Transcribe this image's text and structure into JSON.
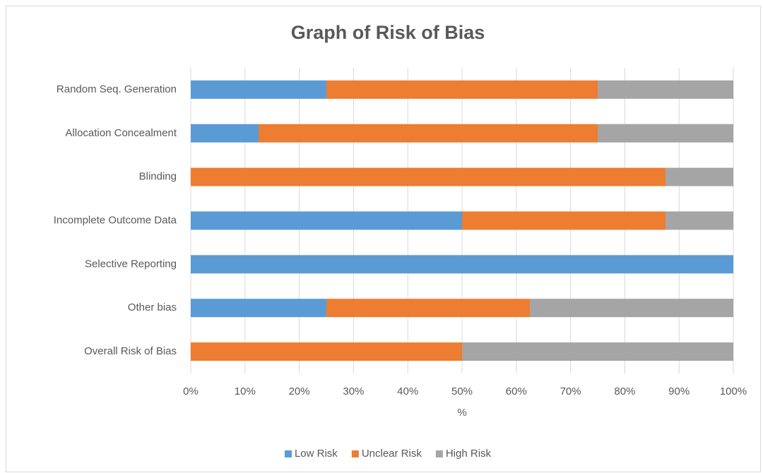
{
  "chart_data": {
    "type": "stacked-bar-horizontal",
    "title": "Graph of Risk of Bias",
    "x_label": "%",
    "categories": [
      "Random Seq. Generation",
      "Allocation Concealment",
      "Blinding",
      "Incomplete Outcome Data",
      "Selective Reporting",
      "Other bias",
      "Overall Risk of Bias"
    ],
    "series": [
      {
        "name": "Low Risk",
        "color": "#5b9bd5",
        "values": [
          25,
          12.5,
          0,
          50,
          100,
          25,
          0
        ]
      },
      {
        "name": "Unclear Risk",
        "color": "#ed7d31",
        "values": [
          50,
          62.5,
          87.5,
          37.5,
          0,
          37.5,
          50
        ]
      },
      {
        "name": "High Risk",
        "color": "#a5a5a5",
        "values": [
          25,
          25,
          12.5,
          12.5,
          0,
          37.5,
          50
        ]
      }
    ],
    "xlim": [
      0,
      100
    ],
    "xticks": [
      {
        "value": 0,
        "label": "0%"
      },
      {
        "value": 10,
        "label": "10%"
      },
      {
        "value": 20,
        "label": "20%"
      },
      {
        "value": 30,
        "label": "30%"
      },
      {
        "value": 40,
        "label": "40%"
      },
      {
        "value": 50,
        "label": "50%"
      },
      {
        "value": 60,
        "label": "60%"
      },
      {
        "value": 70,
        "label": "70%"
      },
      {
        "value": 80,
        "label": "80%"
      },
      {
        "value": 90,
        "label": "90%"
      },
      {
        "value": 100,
        "label": "100%"
      }
    ],
    "grid": true,
    "legend": "bottom"
  }
}
